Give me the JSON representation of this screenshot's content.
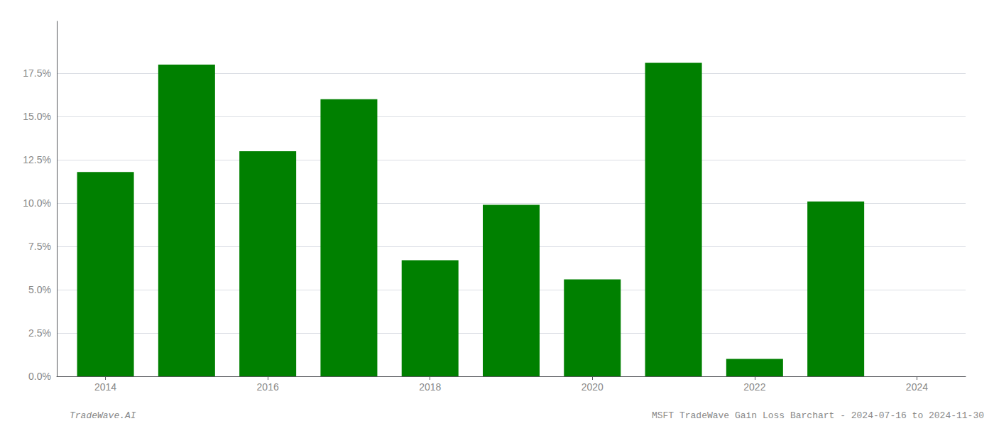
{
  "chart_data": {
    "type": "bar",
    "x": [
      2014,
      2015,
      2016,
      2017,
      2018,
      2019,
      2020,
      2021,
      2022,
      2023
    ],
    "values": [
      0.118,
      0.18,
      0.13,
      0.16,
      0.067,
      0.099,
      0.056,
      0.181,
      0.01,
      0.101
    ],
    "color": "#008000",
    "xlim": [
      2013.4,
      2024.6
    ],
    "xticks": [
      2014,
      2016,
      2018,
      2020,
      2022,
      2024
    ],
    "ylim": [
      0,
      0.205
    ],
    "yticks": [
      {
        "value": 0.0,
        "label": "0.0%"
      },
      {
        "value": 0.025,
        "label": "2.5%"
      },
      {
        "value": 0.05,
        "label": "5.0%"
      },
      {
        "value": 0.075,
        "label": "7.5%"
      },
      {
        "value": 0.1,
        "label": "10.0%"
      },
      {
        "value": 0.125,
        "label": "12.5%"
      },
      {
        "value": 0.15,
        "label": "15.0%"
      },
      {
        "value": 0.175,
        "label": "17.5%"
      }
    ],
    "grid": true,
    "annotations": [
      "TradeWave.AI",
      "MSFT TradeWave Gain Loss Barchart - 2024-07-16 to 2024-11-30"
    ]
  }
}
